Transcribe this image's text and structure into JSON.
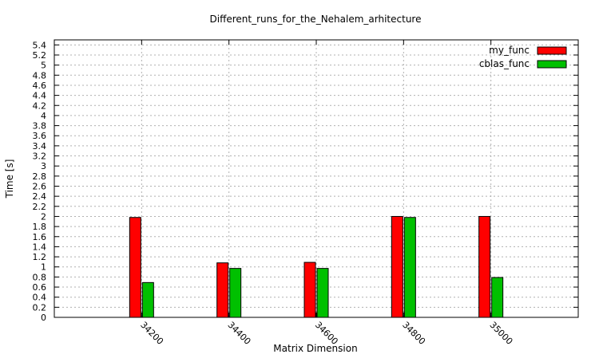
{
  "chart_data": {
    "type": "bar",
    "title": "Different_runs_for_the_Nehalem_arhitecture",
    "xlabel": "Matrix Dimension",
    "ylabel": "Time [s]",
    "categories": [
      "34200",
      "34400",
      "34600",
      "34800",
      "35000"
    ],
    "x_range": [
      34000,
      35200
    ],
    "ylim": [
      0,
      5.5
    ],
    "y_ticks": [
      "0",
      "0.2",
      "0.4",
      "0.6",
      "0.8",
      "1",
      "1.2",
      "1.4",
      "1.6",
      "1.8",
      "2",
      "2.2",
      "2.4",
      "2.6",
      "2.8",
      "3",
      "3.2",
      "3.4",
      "3.6",
      "3.8",
      "4",
      "4.2",
      "4.4",
      "4.6",
      "4.8",
      "5",
      "5.2",
      "5.4"
    ],
    "series": [
      {
        "name": "my_func",
        "color": "#ff0000",
        "values": [
          1.98,
          1.08,
          1.09,
          2.0,
          2.0
        ]
      },
      {
        "name": "cblas_func",
        "color": "#00c000",
        "values": [
          0.69,
          0.97,
          0.97,
          1.98,
          0.79
        ]
      }
    ],
    "grid": true,
    "legend_position": "top-right"
  }
}
